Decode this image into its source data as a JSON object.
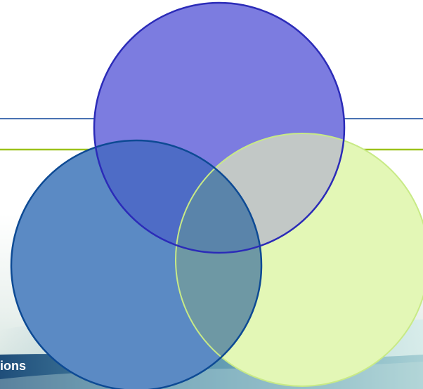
{
  "slide": {
    "footer_text": "ions",
    "rule_colors": {
      "upper": "#4a72b2",
      "lower": "#9cc21a"
    }
  },
  "venn": {
    "circles": [
      {
        "id": "top",
        "fill": "#7c7ce0",
        "stroke": "#2b2bb8"
      },
      {
        "id": "left",
        "fill": "#5b8ac4",
        "stroke": "#0d4a94"
      },
      {
        "id": "right",
        "fill": "#e3f7b6",
        "stroke": "#c8ea86"
      }
    ],
    "overlaps": {
      "top_left": "#4e6cc6",
      "top_right": "#c2c8c6",
      "left_right": "#6e98a4",
      "all": "#5a84aa"
    }
  }
}
